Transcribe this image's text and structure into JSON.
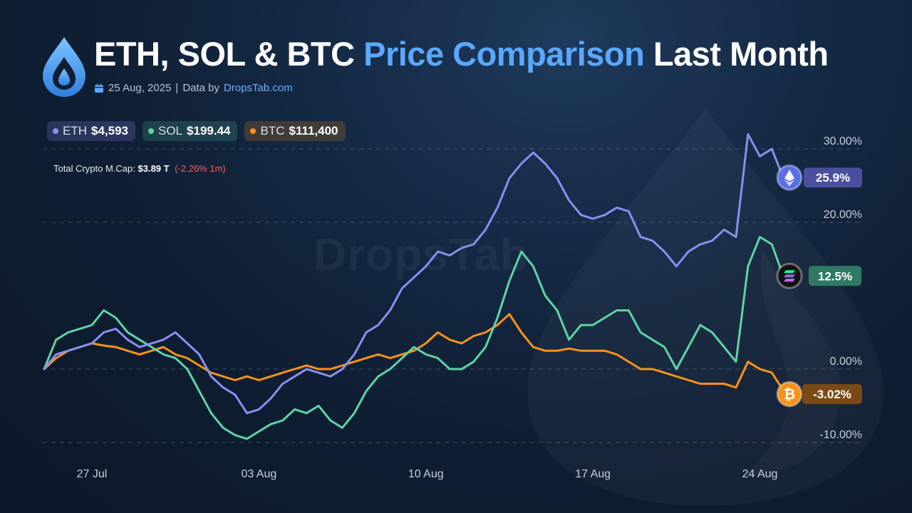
{
  "header": {
    "title_prefix": "ETH, SOL & BTC",
    "title_accent": "Price Comparison",
    "title_suffix": "Last Month",
    "date": "25 Aug, 2025",
    "separator": "|",
    "data_by": "Data by",
    "brand": "DropsTab.com",
    "watermark": "DropsTab"
  },
  "legend": [
    {
      "name": "ETH",
      "price": "$4,593",
      "color": "#8b8ef0"
    },
    {
      "name": "SOL",
      "price": "$199.44",
      "color": "#5fd3a5"
    },
    {
      "name": "BTC",
      "price": "$111,400",
      "color": "#f7931a"
    }
  ],
  "market_cap": {
    "label": "Total Crypto M.Cap:",
    "value": "$3.89 T",
    "change": "(-2.26% 1m)"
  },
  "colors": {
    "eth": "#8b8ef0",
    "sol": "#5fd3a5",
    "btc": "#f7931a",
    "accent": "#5aa8ff",
    "negative": "#ff5a5a"
  },
  "icons": [
    "dropstab-logo-icon",
    "calendar-icon",
    "ethereum-icon",
    "solana-icon",
    "bitcoin-icon"
  ],
  "chart_data": {
    "type": "line",
    "ylabel": "",
    "xlabel": "",
    "ylim": [
      -10,
      32
    ],
    "xlim": [
      0,
      31
    ],
    "yticks": [
      "30.00%",
      "20.00%",
      "0.00%",
      "-10.00%"
    ],
    "ytick_values": [
      30,
      20,
      0,
      -10
    ],
    "x_tick_labels": [
      "27 Jul",
      "03 Aug",
      "10 Aug",
      "17 Aug",
      "24 Aug"
    ],
    "x_tick_values": [
      2,
      9,
      16,
      23,
      30
    ],
    "grid": true,
    "series": [
      {
        "name": "ETH",
        "color": "#8b8ef0",
        "end_label": "25.9%",
        "x": [
          0,
          0.5,
          1,
          1.5,
          2,
          2.5,
          3,
          3.5,
          4,
          4.5,
          5,
          5.5,
          6,
          6.5,
          7,
          7.5,
          8,
          8.5,
          9,
          9.5,
          10,
          10.5,
          11,
          11.5,
          12,
          12.5,
          13,
          13.5,
          14,
          14.5,
          15,
          15.5,
          16,
          16.5,
          17,
          17.5,
          18,
          18.5,
          19,
          19.5,
          20,
          20.5,
          21,
          21.5,
          22,
          22.5,
          23,
          23.5,
          24,
          24.5,
          25,
          25.5,
          26,
          26.5,
          27,
          27.5,
          28,
          28.5,
          29,
          29.5,
          30,
          30.5,
          31
        ],
        "values": [
          0,
          2,
          2.5,
          3,
          3.5,
          5,
          5.5,
          4,
          3,
          3.5,
          4,
          5,
          3.5,
          2,
          -1,
          -2.5,
          -3.5,
          -6,
          -5.5,
          -4,
          -2,
          -1,
          0,
          -0.5,
          -1,
          0,
          2,
          5,
          6,
          8,
          11,
          12.5,
          14,
          16,
          15.5,
          16.5,
          17,
          19,
          22,
          26,
          28,
          29.5,
          28,
          26,
          23,
          21,
          20.5,
          21,
          22,
          21.5,
          18,
          17.5,
          16,
          14,
          16,
          17,
          17.5,
          19,
          18,
          32,
          29,
          30,
          25.9
        ]
      },
      {
        "name": "SOL",
        "color": "#5fd3a5",
        "end_label": "12.5%",
        "x": [
          0,
          0.5,
          1,
          1.5,
          2,
          2.5,
          3,
          3.5,
          4,
          4.5,
          5,
          5.5,
          6,
          6.5,
          7,
          7.5,
          8,
          8.5,
          9,
          9.5,
          10,
          10.5,
          11,
          11.5,
          12,
          12.5,
          13,
          13.5,
          14,
          14.5,
          15,
          15.5,
          16,
          16.5,
          17,
          17.5,
          18,
          18.5,
          19,
          19.5,
          20,
          20.5,
          21,
          21.5,
          22,
          22.5,
          23,
          23.5,
          24,
          24.5,
          25,
          25.5,
          26,
          26.5,
          27,
          27.5,
          28,
          28.5,
          29,
          29.5,
          30,
          30.5,
          31
        ],
        "values": [
          0,
          4,
          5,
          5.5,
          6,
          8,
          7,
          5,
          4,
          3,
          2,
          1.5,
          0,
          -3,
          -6,
          -8,
          -9,
          -9.5,
          -8.5,
          -7.5,
          -7,
          -5.5,
          -6,
          -5,
          -7,
          -8,
          -6,
          -3,
          -1,
          0,
          1.5,
          3,
          2,
          1.5,
          0,
          0,
          1,
          3,
          7,
          12,
          16,
          14,
          10,
          8,
          4,
          6,
          6,
          7,
          8,
          8,
          5,
          4,
          3,
          0,
          3,
          6,
          5,
          3,
          1,
          14,
          18,
          17,
          12.5
        ]
      },
      {
        "name": "BTC",
        "color": "#f7931a",
        "end_label": "-3.02%",
        "x": [
          0,
          0.5,
          1,
          1.5,
          2,
          2.5,
          3,
          3.5,
          4,
          4.5,
          5,
          5.5,
          6,
          6.5,
          7,
          7.5,
          8,
          8.5,
          9,
          9.5,
          10,
          10.5,
          11,
          11.5,
          12,
          12.5,
          13,
          13.5,
          14,
          14.5,
          15,
          15.5,
          16,
          16.5,
          17,
          17.5,
          18,
          18.5,
          19,
          19.5,
          20,
          20.5,
          21,
          21.5,
          22,
          22.5,
          23,
          23.5,
          24,
          24.5,
          25,
          25.5,
          26,
          26.5,
          27,
          27.5,
          28,
          28.5,
          29,
          29.5,
          30,
          30.5,
          31
        ],
        "values": [
          0,
          1.5,
          2.5,
          3,
          3.5,
          3.2,
          3,
          2.5,
          2,
          2.5,
          3,
          2,
          1.5,
          0.5,
          -0.5,
          -1,
          -1.5,
          -1,
          -1.5,
          -1,
          -0.5,
          0,
          0.5,
          0,
          0,
          0.5,
          1,
          1.5,
          2,
          1.5,
          2,
          2.5,
          3.5,
          5,
          4,
          3.5,
          4.5,
          5,
          6,
          7.5,
          5,
          3,
          2.5,
          2.5,
          2.8,
          2.5,
          2.5,
          2.5,
          2,
          1,
          0,
          0,
          -0.5,
          -1,
          -1.5,
          -2,
          -2,
          -2,
          -2.5,
          1,
          0,
          -0.5,
          -3.02
        ]
      }
    ]
  }
}
